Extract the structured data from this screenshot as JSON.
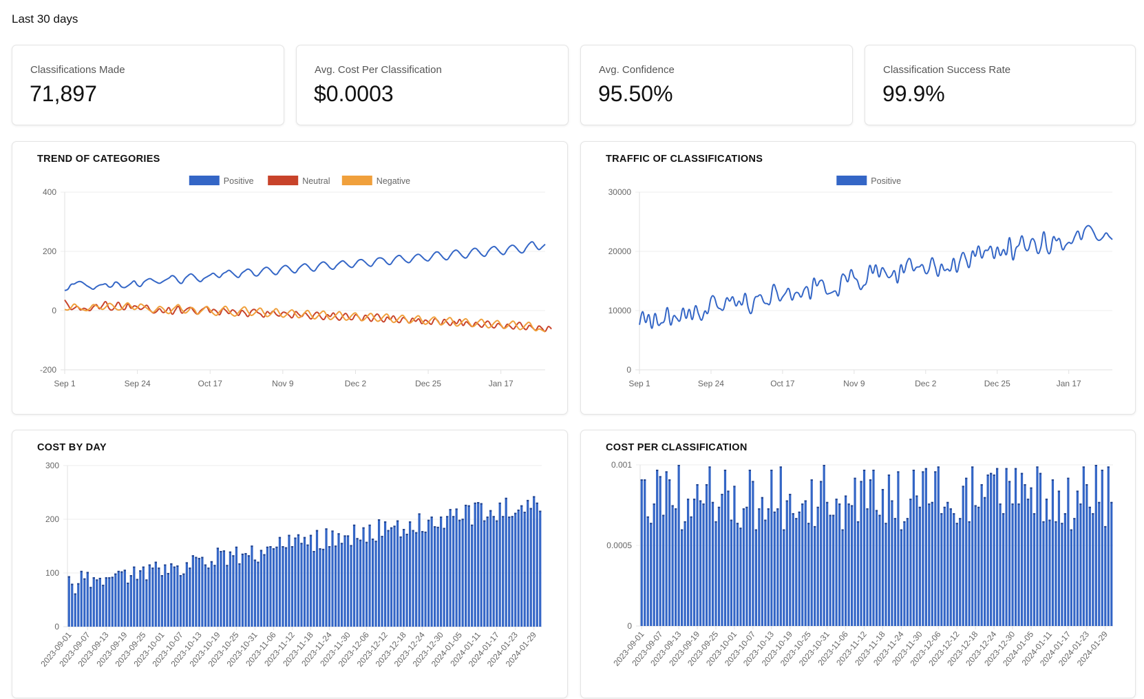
{
  "header": {
    "period_label": "Last 30 days"
  },
  "stats": [
    {
      "label": "Classifications Made",
      "value": "71,897"
    },
    {
      "label": "Avg. Cost Per Classification",
      "value": "$0.0003"
    },
    {
      "label": "Avg. Confidence",
      "value": "95.50%"
    },
    {
      "label": "Classification Success Rate",
      "value": "99.9%"
    }
  ],
  "colors": {
    "positive": "#3466c6",
    "neutral": "#c8432a",
    "negative": "#f0a03c",
    "bar": "#3466c6",
    "bar_edge": "#23448e"
  },
  "chart_data": [
    {
      "id": "trend",
      "type": "line",
      "title": "TREND OF CATEGORIES",
      "x_start": "2023-09-01",
      "x_end": "2024-01-31",
      "xticks": [
        "Sep 1",
        "Sep 24",
        "Oct 17",
        "Nov 9",
        "Dec 2",
        "Dec 25",
        "Jan 17"
      ],
      "xtick_days": [
        0,
        23,
        46,
        69,
        92,
        115,
        138
      ],
      "yticks": [
        400,
        200,
        0,
        -200
      ],
      "ylim": [
        -200,
        400
      ],
      "grid": true,
      "legend": "top-center",
      "series": [
        {
          "name": "Positive",
          "color": "#3466c6",
          "values": [
            68,
            72,
            88,
            90,
            96,
            98,
            92,
            84,
            78,
            72,
            80,
            86,
            88,
            90,
            80,
            82,
            96,
            92,
            80,
            78,
            84,
            92,
            100,
            86,
            82,
            96,
            104,
            108,
            102,
            96,
            92,
            98,
            104,
            110,
            118,
            112,
            98,
            92,
            108,
            118,
            124,
            116,
            104,
            98,
            108,
            114,
            120,
            126,
            118,
            112,
            124,
            130,
            136,
            128,
            118,
            112,
            126,
            134,
            140,
            134,
            120,
            118,
            130,
            142,
            146,
            138,
            126,
            122,
            136,
            148,
            152,
            144,
            132,
            128,
            142,
            152,
            158,
            150,
            138,
            134,
            148,
            160,
            164,
            156,
            144,
            140,
            152,
            162,
            168,
            160,
            150,
            146,
            158,
            170,
            172,
            164,
            154,
            150,
            164,
            176,
            178,
            172,
            160,
            156,
            170,
            182,
            186,
            176,
            166,
            162,
            174,
            186,
            190,
            182,
            172,
            168,
            180,
            194,
            198,
            188,
            176,
            172,
            186,
            200,
            204,
            194,
            182,
            178,
            192,
            206,
            210,
            200,
            188,
            184,
            200,
            212,
            216,
            206,
            194,
            190,
            206,
            218,
            220,
            210,
            198,
            196,
            212,
            226,
            232,
            218,
            206,
            214,
            224
          ]
        },
        {
          "name": "Neutral",
          "color": "#c8432a",
          "values": [
            36,
            20,
            4,
            8,
            14,
            2,
            8,
            4,
            0,
            12,
            20,
            6,
            18,
            30,
            8,
            2,
            14,
            28,
            10,
            4,
            22,
            8,
            16,
            12,
            4,
            10,
            18,
            2,
            -8,
            -4,
            6,
            -6,
            -2,
            10,
            -12,
            2,
            14,
            -8,
            0,
            8,
            10,
            -4,
            -12,
            0,
            8,
            12,
            -6,
            4,
            -2,
            -14,
            6,
            0,
            -10,
            2,
            -4,
            -16,
            0,
            -8,
            -20,
            -2,
            4,
            -6,
            -12,
            -22,
            -4,
            -10,
            -2,
            -14,
            -18,
            -6,
            -8,
            -16,
            -24,
            -4,
            -12,
            -20,
            -8,
            -18,
            -28,
            -12,
            -6,
            -22,
            -30,
            -14,
            -20,
            -8,
            -24,
            -32,
            -18,
            -10,
            -26,
            -30,
            -14,
            -22,
            -34,
            -16,
            -24,
            -36,
            -20,
            -12,
            -28,
            -38,
            -22,
            -30,
            -18,
            -34,
            -40,
            -24,
            -30,
            -42,
            -26,
            -36,
            -28,
            -44,
            -32,
            -38,
            -46,
            -28,
            -34,
            -48,
            -30,
            -40,
            -50,
            -36,
            -44,
            -30,
            -50,
            -38,
            -46,
            -54,
            -40,
            -48,
            -56,
            -42,
            -36,
            -52,
            -58,
            -44,
            -50,
            -60,
            -46,
            -54,
            -62,
            -48,
            -40,
            -56,
            -64,
            -50,
            -58,
            -66,
            -52,
            -60,
            -70,
            -54,
            -62
          ]
        },
        {
          "name": "Negative",
          "color": "#f0a03c",
          "values": [
            4,
            2,
            10,
            22,
            14,
            6,
            2,
            0,
            8,
            20,
            16,
            10,
            4,
            12,
            24,
            20,
            8,
            2,
            6,
            18,
            26,
            14,
            4,
            10,
            22,
            16,
            8,
            0,
            -6,
            4,
            14,
            8,
            -4,
            -10,
            2,
            12,
            20,
            4,
            -8,
            -2,
            10,
            4,
            -12,
            -4,
            6,
            14,
            2,
            -10,
            -16,
            -4,
            8,
            14,
            -2,
            -14,
            -18,
            -6,
            6,
            12,
            -4,
            -16,
            -10,
            2,
            8,
            -8,
            -20,
            -14,
            -2,
            6,
            -10,
            -22,
            -16,
            -4,
            2,
            -12,
            -24,
            -18,
            -6,
            0,
            -16,
            -28,
            -20,
            -8,
            -2,
            -18,
            -30,
            -24,
            -12,
            -4,
            -20,
            -32,
            -26,
            -14,
            -8,
            -22,
            -34,
            -28,
            -16,
            -10,
            -26,
            -36,
            -30,
            -18,
            -12,
            -28,
            -40,
            -34,
            -22,
            -16,
            -30,
            -42,
            -36,
            -24,
            -18,
            -34,
            -46,
            -40,
            -28,
            -22,
            -36,
            -48,
            -42,
            -30,
            -24,
            -40,
            -52,
            -46,
            -34,
            -28,
            -42,
            -54,
            -48,
            -36,
            -30,
            -46,
            -58,
            -52,
            -40,
            -34,
            -48,
            -60,
            -54,
            -42,
            -36,
            -52,
            -64,
            -58,
            -46,
            -40,
            -56,
            -68,
            -62,
            -66,
            -72
          ]
        }
      ]
    },
    {
      "id": "traffic",
      "type": "line",
      "title": "TRAFFIC OF CLASSIFICATIONS",
      "x_start": "2023-09-01",
      "x_end": "2024-01-31",
      "xticks": [
        "Sep 1",
        "Sep 24",
        "Oct 17",
        "Nov 9",
        "Dec 2",
        "Dec 25",
        "Jan 17"
      ],
      "xtick_days": [
        0,
        23,
        46,
        69,
        92,
        115,
        138
      ],
      "yticks": [
        30000,
        20000,
        10000,
        0
      ],
      "ylim": [
        0,
        30000
      ],
      "grid": true,
      "legend": "top-center",
      "series": [
        {
          "name": "Positive",
          "color": "#3466c6",
          "values": [
            7600,
            9800,
            8000,
            9300,
            7000,
            9500,
            7600,
            7900,
            8300,
            10500,
            7600,
            9100,
            8700,
            8300,
            10400,
            8700,
            10200,
            8500,
            10800,
            9400,
            8400,
            9900,
            9600,
            12100,
            12300,
            10700,
            10300,
            10200,
            12100,
            11600,
            12300,
            10800,
            11600,
            11000,
            12900,
            10400,
            9600,
            12000,
            12400,
            12600,
            11400,
            11200,
            11300,
            14300,
            13400,
            11700,
            12300,
            13000,
            13700,
            11800,
            12900,
            13000,
            12300,
            13600,
            13900,
            12000,
            15400,
            14200,
            15000,
            14900,
            13000,
            12900,
            13100,
            13300,
            12600,
            15800,
            15900,
            14900,
            16900,
            15600,
            15100,
            13600,
            14200,
            14800,
            17600,
            16300,
            17700,
            15700,
            17200,
            16500,
            15600,
            15900,
            16700,
            14700,
            17700,
            16400,
            18200,
            18700,
            16800,
            17300,
            17400,
            17700,
            16300,
            16800,
            18900,
            17500,
            15800,
            17800,
            16800,
            17000,
            16800,
            18800,
            16500,
            18400,
            19800,
            18600,
            17300,
            20000,
            19200,
            20900,
            18900,
            20100,
            20200,
            20800,
            18800,
            20700,
            19300,
            20300,
            19500,
            22300,
            18600,
            20500,
            21100,
            22600,
            20500,
            20300,
            22000,
            21700,
            19700,
            20600,
            23300,
            20300,
            19800,
            22400,
            21800,
            22100,
            20300,
            21000,
            21500,
            21400,
            22600,
            23400,
            22000,
            23600,
            24300,
            24100,
            23200,
            22100,
            21900,
            22400,
            23100,
            22500,
            22000
          ]
        }
      ]
    },
    {
      "id": "cost_by_day",
      "type": "bar",
      "title": "COST BY DAY",
      "x_start": "2023-09-01",
      "x_end": "2024-01-31",
      "xtick_labels": [
        "2023-09-01",
        "2023-09-07",
        "2023-09-13",
        "2023-09-19",
        "2023-09-25",
        "2023-10-01",
        "2023-10-07",
        "2023-10-13",
        "2023-10-19",
        "2023-10-25",
        "2023-10-31",
        "2023-11-06",
        "2023-11-12",
        "2023-11-18",
        "2023-11-24",
        "2023-11-30",
        "2023-12-06",
        "2023-12-12",
        "2023-12-18",
        "2023-12-24",
        "2023-12-30",
        "2024-01-05",
        "2024-01-11",
        "2024-01-17",
        "2024-01-23",
        "2024-01-29"
      ],
      "yticks": [
        300,
        200,
        100,
        0
      ],
      "ylim": [
        0,
        300
      ],
      "grid": true,
      "values": [
        94,
        80,
        62,
        81,
        104,
        90,
        102,
        74,
        92,
        88,
        91,
        78,
        92,
        92,
        93,
        99,
        104,
        103,
        106,
        82,
        96,
        112,
        89,
        105,
        112,
        88,
        116,
        110,
        121,
        110,
        96,
        116,
        100,
        118,
        112,
        114,
        96,
        99,
        120,
        110,
        133,
        130,
        128,
        130,
        116,
        110,
        122,
        115,
        147,
        141,
        142,
        115,
        140,
        133,
        149,
        118,
        136,
        137,
        133,
        151,
        125,
        121,
        143,
        135,
        149,
        150,
        146,
        149,
        167,
        150,
        148,
        171,
        150,
        166,
        172,
        156,
        167,
        153,
        171,
        141,
        180,
        146,
        145,
        183,
        150,
        179,
        151,
        174,
        156,
        170,
        170,
        152,
        190,
        165,
        162,
        185,
        158,
        190,
        164,
        160,
        200,
        169,
        196,
        180,
        185,
        188,
        198,
        168,
        182,
        173,
        196,
        180,
        176,
        211,
        178,
        177,
        199,
        205,
        187,
        186,
        205,
        184,
        206,
        219,
        206,
        220,
        199,
        201,
        227,
        226,
        190,
        231,
        232,
        230,
        198,
        205,
        217,
        206,
        198,
        231,
        206,
        240,
        205,
        206,
        212,
        218,
        226,
        214,
        236,
        221,
        243,
        231,
        216
      ]
    },
    {
      "id": "cost_per_classification",
      "type": "bar",
      "title": "COST PER CLASSIFICATION",
      "x_start": "2023-09-01",
      "x_end": "2024-01-31",
      "xtick_labels": [
        "2023-09-01",
        "2023-09-07",
        "2023-09-13",
        "2023-09-19",
        "2023-09-25",
        "2023-10-01",
        "2023-10-07",
        "2023-10-13",
        "2023-10-19",
        "2023-10-25",
        "2023-10-31",
        "2023-11-06",
        "2023-11-12",
        "2023-11-18",
        "2023-11-24",
        "2023-11-30",
        "2023-12-06",
        "2023-12-12",
        "2023-12-18",
        "2023-12-24",
        "2023-12-30",
        "2024-01-05",
        "2024-01-11",
        "2024-01-17",
        "2024-01-23",
        "2024-01-29"
      ],
      "yticks": [
        0.001,
        0.0005,
        0
      ],
      "ylim": [
        0,
        0.001
      ],
      "grid": true,
      "values": [
        0.00091,
        0.00091,
        0.00068,
        0.00064,
        0.00076,
        0.00097,
        0.00093,
        0.00069,
        0.00096,
        0.00091,
        0.00075,
        0.00073,
        0.001,
        0.0006,
        0.00065,
        0.00079,
        0.00068,
        0.00079,
        0.00088,
        0.00078,
        0.00076,
        0.00088,
        0.00099,
        0.00077,
        0.00065,
        0.00074,
        0.00082,
        0.00097,
        0.00084,
        0.00066,
        0.00087,
        0.00064,
        0.00061,
        0.00073,
        0.00074,
        0.00097,
        0.0009,
        0.0006,
        0.00073,
        0.0008,
        0.00066,
        0.00073,
        0.00097,
        0.00071,
        0.00073,
        0.00099,
        0.0006,
        0.00078,
        0.00082,
        0.0007,
        0.00067,
        0.00071,
        0.00076,
        0.00078,
        0.00064,
        0.00091,
        0.00062,
        0.00074,
        0.0009,
        0.001,
        0.00077,
        0.00069,
        0.00069,
        0.00079,
        0.00076,
        0.0006,
        0.00081,
        0.00076,
        0.00075,
        0.00092,
        0.00065,
        0.0009,
        0.00097,
        0.00073,
        0.00091,
        0.00097,
        0.00072,
        0.00069,
        0.00085,
        0.00064,
        0.00094,
        0.00078,
        0.00067,
        0.00096,
        0.0006,
        0.00065,
        0.00067,
        0.00079,
        0.00097,
        0.00081,
        0.00074,
        0.00096,
        0.00098,
        0.00076,
        0.00077,
        0.00096,
        0.00099,
        0.0007,
        0.00074,
        0.00077,
        0.00073,
        0.0007,
        0.00064,
        0.00067,
        0.00087,
        0.00092,
        0.00065,
        0.00099,
        0.00075,
        0.00074,
        0.00088,
        0.0008,
        0.00094,
        0.00095,
        0.00094,
        0.00098,
        0.00076,
        0.0007,
        0.00098,
        0.0009,
        0.00076,
        0.00098,
        0.00076,
        0.00095,
        0.00088,
        0.00079,
        0.00086,
        0.0007,
        0.00099,
        0.00095,
        0.00065,
        0.00079,
        0.00066,
        0.00091,
        0.00065,
        0.00084,
        0.00064,
        0.0007,
        0.00092,
        0.0006,
        0.00067,
        0.00084,
        0.00076,
        0.00099,
        0.00088,
        0.00074,
        0.0007,
        0.001,
        0.00077,
        0.00097,
        0.00062,
        0.00099,
        0.00077
      ]
    }
  ]
}
